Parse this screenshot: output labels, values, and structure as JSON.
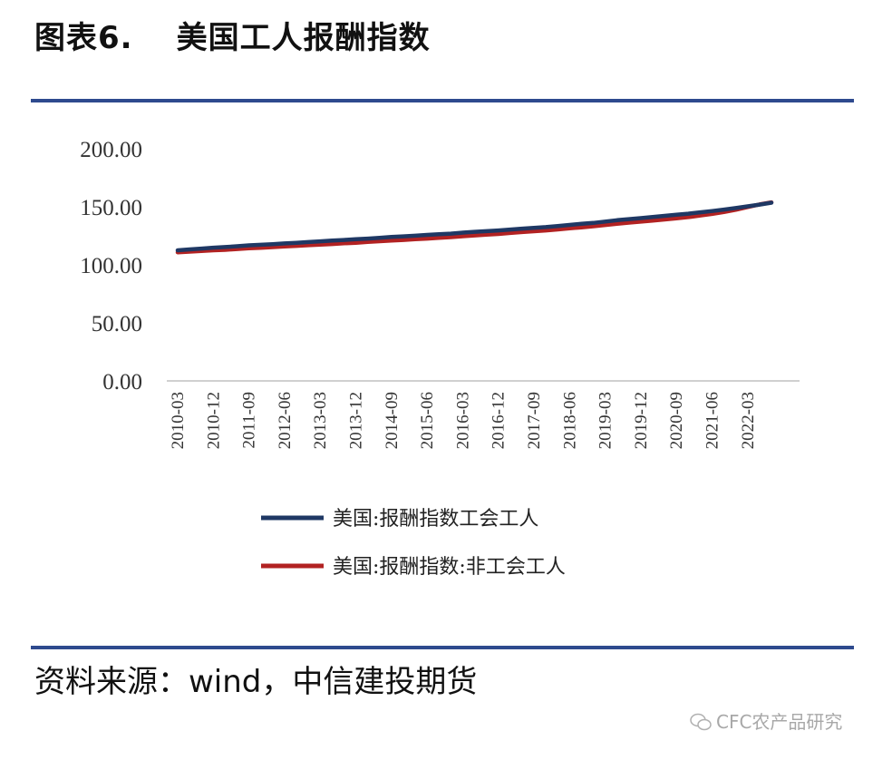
{
  "figure": {
    "label": "图表6.",
    "title": "美国工人报酬指数"
  },
  "source_text": "资料来源：wind，中信建投期货",
  "watermark_text": "CFC农产品研究",
  "chart_data": {
    "type": "line",
    "ylim": [
      0,
      200
    ],
    "yticks": [
      "0.00",
      "50.00",
      "100.00",
      "150.00",
      "200.00"
    ],
    "ytick_values": [
      0,
      50,
      100,
      150,
      200
    ],
    "xtick_labels": [
      "2010-03",
      "2010-12",
      "2011-09",
      "2012-06",
      "2013-03",
      "2013-12",
      "2014-09",
      "2015-06",
      "2016-03",
      "2016-12",
      "2017-09",
      "2018-06",
      "2019-03",
      "2019-12",
      "2020-09",
      "2021-06",
      "2022-03"
    ],
    "x": [
      "2010-03",
      "2010-06",
      "2010-09",
      "2010-12",
      "2011-03",
      "2011-06",
      "2011-09",
      "2011-12",
      "2012-03",
      "2012-06",
      "2012-09",
      "2012-12",
      "2013-03",
      "2013-06",
      "2013-09",
      "2013-12",
      "2014-03",
      "2014-06",
      "2014-09",
      "2014-12",
      "2015-03",
      "2015-06",
      "2015-09",
      "2015-12",
      "2016-03",
      "2016-06",
      "2016-09",
      "2016-12",
      "2017-03",
      "2017-06",
      "2017-09",
      "2017-12",
      "2018-03",
      "2018-06",
      "2018-09",
      "2018-12",
      "2019-03",
      "2019-06",
      "2019-09",
      "2019-12",
      "2020-03",
      "2020-06",
      "2020-09",
      "2020-12",
      "2021-03",
      "2021-06",
      "2021-09",
      "2021-12",
      "2022-03",
      "2022-06",
      "2022-09"
    ],
    "series": [
      {
        "name": "美国:报酬指数工会工人",
        "color": "#1f3864",
        "values": [
          112.5,
          113.3,
          114.0,
          114.8,
          115.3,
          116.0,
          116.8,
          117.3,
          117.8,
          118.4,
          119.0,
          119.6,
          120.2,
          120.9,
          121.4,
          122.0,
          122.6,
          123.3,
          124.0,
          124.5,
          125.1,
          125.8,
          126.4,
          126.9,
          127.7,
          128.4,
          129.0,
          129.6,
          130.4,
          131.2,
          131.9,
          132.5,
          133.4,
          134.4,
          135.3,
          136.1,
          137.3,
          138.4,
          139.4,
          140.2,
          141.2,
          142.2,
          143.2,
          144.1,
          145.2,
          146.3,
          147.6,
          148.9,
          150.4,
          151.9,
          153.5
        ]
      },
      {
        "name": "美国:报酬指数:非工会工人",
        "color": "#b22222",
        "values": [
          110.8,
          111.3,
          111.9,
          112.5,
          112.9,
          113.6,
          114.2,
          114.7,
          115.2,
          115.8,
          116.3,
          116.9,
          117.4,
          117.9,
          118.5,
          119.0,
          119.7,
          120.3,
          120.9,
          121.4,
          122.0,
          122.6,
          123.3,
          123.8,
          124.6,
          125.3,
          126.0,
          126.6,
          127.4,
          128.2,
          128.9,
          129.6,
          130.5,
          131.4,
          132.3,
          133.2,
          134.3,
          135.3,
          136.3,
          137.2,
          138.1,
          139.1,
          140.1,
          141.1,
          142.4,
          143.8,
          145.5,
          147.4,
          149.8,
          152.0,
          153.8
        ]
      }
    ],
    "grid": false,
    "legend_position": "bottom"
  }
}
